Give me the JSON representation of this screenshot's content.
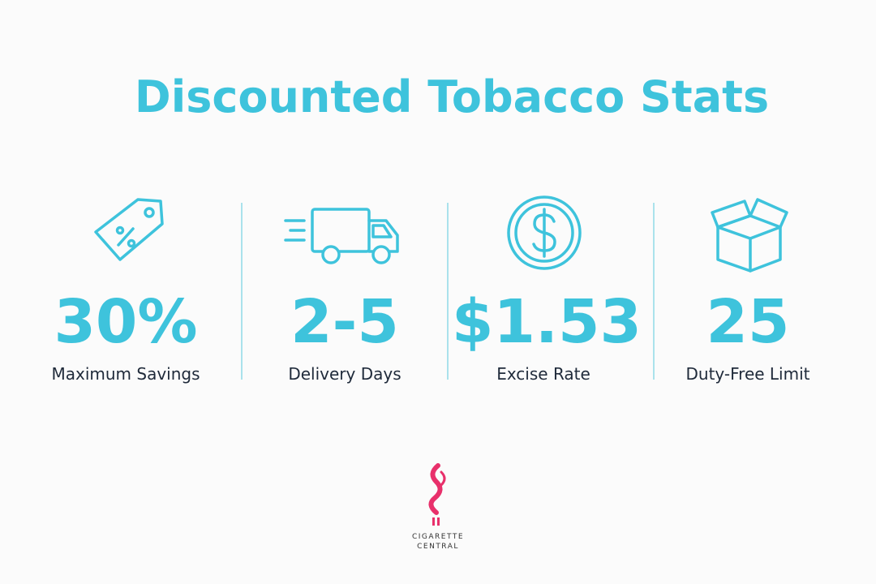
{
  "title": "Discounted Tobacco Stats",
  "stats": [
    {
      "value": "30%",
      "label": "Maximum Savings"
    },
    {
      "value": "2-5",
      "label": "Delivery Days"
    },
    {
      "value": "$1.53",
      "label": "Excise Rate"
    },
    {
      "value": "25",
      "label": "Duty-Free Limit"
    }
  ],
  "logo": {
    "line1": "CIGARETTE",
    "line2": "CENTRAL"
  }
}
